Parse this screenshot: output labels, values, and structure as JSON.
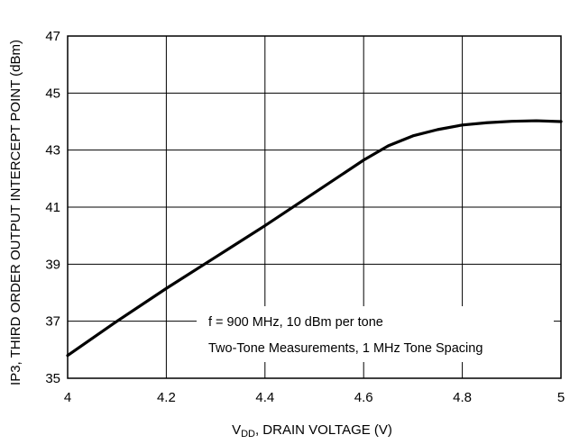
{
  "chart_data": {
    "type": "line",
    "title": "",
    "xlabel_main": "V",
    "xlabel_sub": "DD",
    "xlabel_rest": ", DRAIN VOLTAGE (V)",
    "ylabel": "IP3, THIRD ORDER OUTPUT INTERCEPT POINT (dBm)",
    "xlim": [
      4,
      5
    ],
    "ylim": [
      35,
      47
    ],
    "x_ticks": [
      "4",
      "4.2",
      "4.4",
      "4.6",
      "4.8",
      "5"
    ],
    "y_ticks": [
      "35",
      "37",
      "39",
      "41",
      "43",
      "45",
      "47"
    ],
    "grid": true,
    "annotation_line1": "f = 900 MHz, 10 dBm per tone",
    "annotation_line2": "Two-Tone Measurements, 1 MHz Tone Spacing",
    "series": [
      {
        "x": [
          4.0,
          4.1,
          4.2,
          4.3,
          4.4,
          4.5,
          4.6,
          4.65,
          4.7,
          4.75,
          4.8,
          4.85,
          4.9,
          4.95,
          5.0
        ],
        "y": [
          35.8,
          37.0,
          38.15,
          39.25,
          40.35,
          41.5,
          42.65,
          43.15,
          43.5,
          43.72,
          43.88,
          43.96,
          44.01,
          44.03,
          44.0
        ]
      }
    ]
  }
}
